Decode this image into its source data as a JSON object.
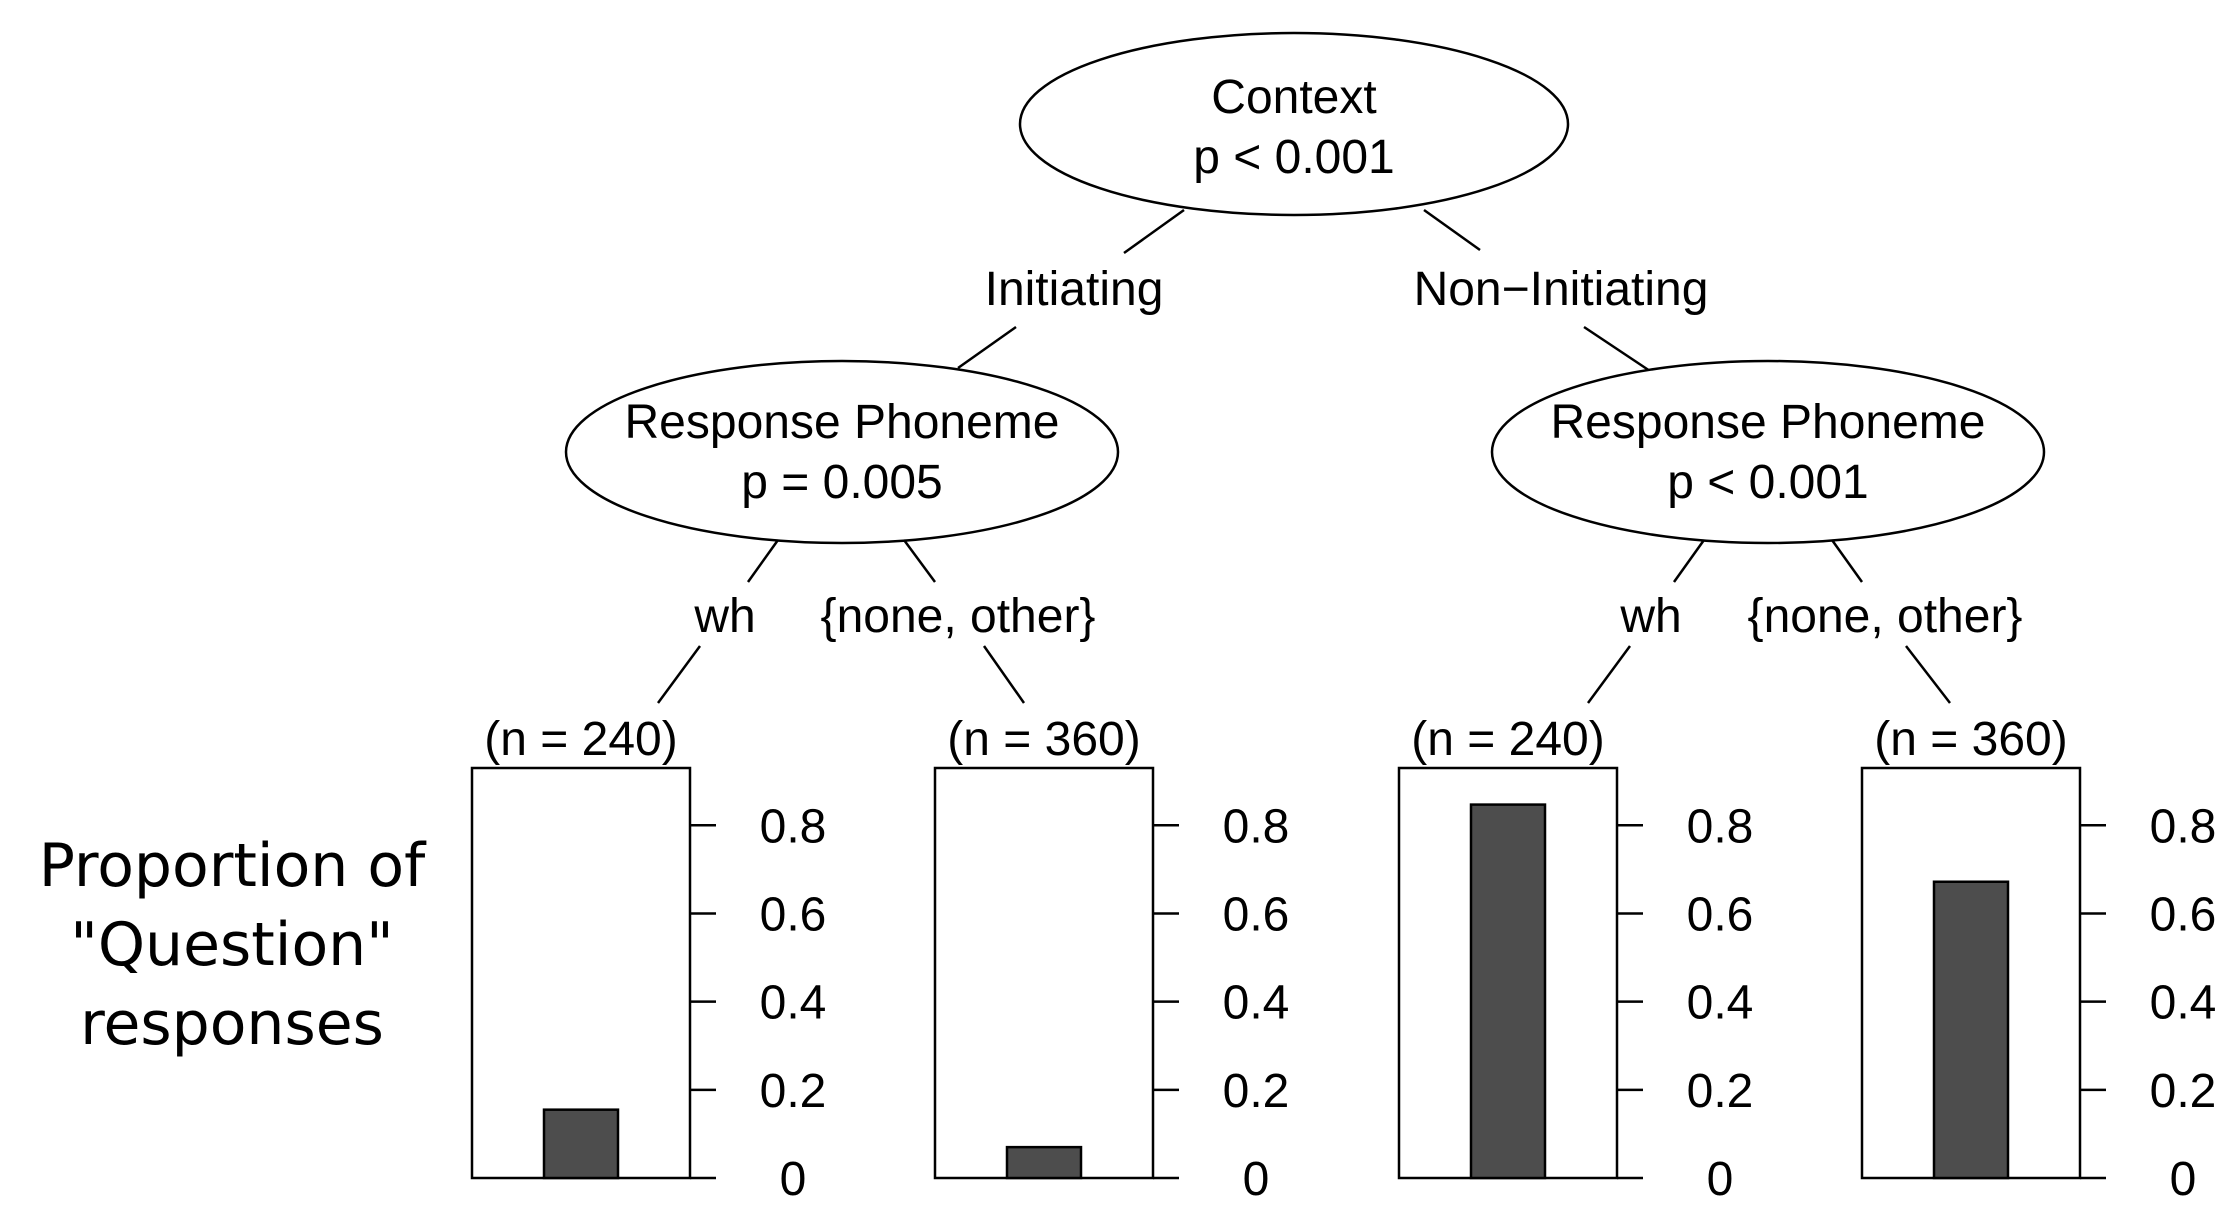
{
  "y_axis_label": [
    "Proportion of",
    "\"Question\"",
    "responses"
  ],
  "tree": {
    "root": {
      "variable": "Context",
      "p": "p < 0.001"
    },
    "edges": [
      "Initiating",
      "Non−Initiating"
    ],
    "inner": [
      {
        "variable": "Response Phoneme",
        "p": "p = 0.005",
        "edges": [
          "wh",
          "{none, other}"
        ]
      },
      {
        "variable": "Response Phoneme",
        "p": "p < 0.001",
        "edges": [
          "wh",
          "{none, other}"
        ]
      }
    ]
  },
  "chart_data": {
    "type": "bar",
    "ylabel": "Proportion of \"Question\" responses",
    "ylim": [
      0,
      0.93
    ],
    "yticks": [
      "0",
      "0.2",
      "0.4",
      "0.6",
      "0.8"
    ],
    "bar_color": "#4d4d4d",
    "panels": [
      {
        "n_label": "(n = 240)",
        "value": 0.155
      },
      {
        "n_label": "(n = 360)",
        "value": 0.07
      },
      {
        "n_label": "(n = 240)",
        "value": 0.847
      },
      {
        "n_label": "(n = 360)",
        "value": 0.672
      }
    ]
  }
}
